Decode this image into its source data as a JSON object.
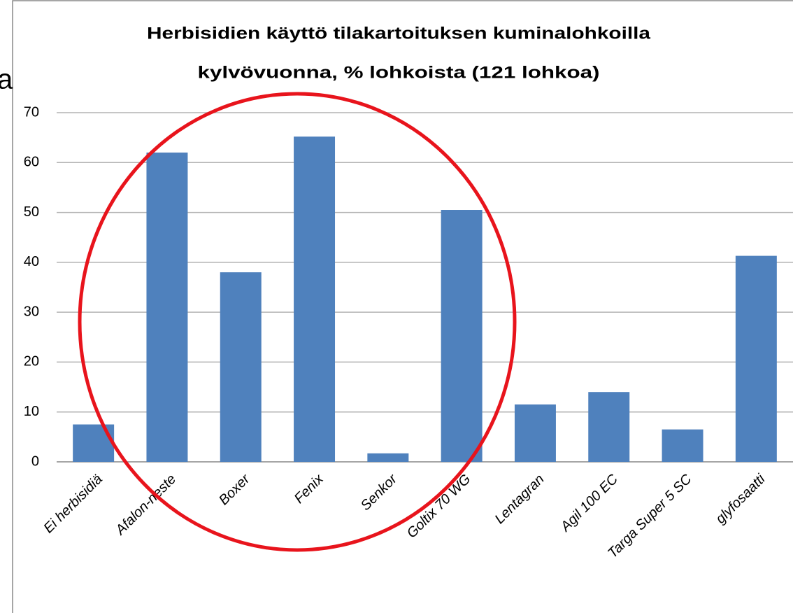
{
  "chart_data": {
    "type": "bar",
    "title": [
      "Herbisidien käyttö tilakartoituksen kuminalohkoilla",
      "kylvövuonna, % lohkoista (121 lohkoa)"
    ],
    "annotations": [
      "a"
    ],
    "categories": [
      "Ei herbisidiä",
      "Afalon-neste",
      "Boxer",
      "Fenix",
      "Senkor",
      "Goltix 70 WG",
      "Lentagran",
      "Agil 100 EC",
      "Targa Super 5 SC",
      "glyfosaatti"
    ],
    "values": [
      7.5,
      62,
      38,
      65.2,
      1.7,
      50.5,
      11.5,
      14,
      6.5,
      41.3
    ],
    "color": "#4f81bd",
    "ylim": [
      0,
      70
    ],
    "yticks": [
      0,
      10,
      20,
      30,
      40,
      50,
      60,
      70
    ],
    "grid": true
  }
}
